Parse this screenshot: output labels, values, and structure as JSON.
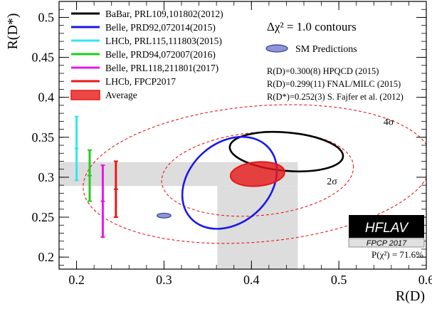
{
  "chart_data": {
    "type": "scatter",
    "xlabel": "R(D)",
    "ylabel": "R(D*)",
    "xlim": [
      0.18,
      0.6
    ],
    "ylim": [
      0.185,
      0.52
    ],
    "x_ticks": [
      "0.2",
      "0.3",
      "0.4",
      "0.5",
      "0.6"
    ],
    "y_ticks": [
      "0.2",
      "0.25",
      "0.3",
      "0.35",
      "0.4",
      "0.45",
      "0.5"
    ],
    "grid": false,
    "legend_position": "top-left",
    "colors": {
      "babar": "#000000",
      "belle_2015": "#1a1ae6",
      "lhcb_2015": "#33e6f2",
      "belle_2016": "#22cc22",
      "belle_2017": "#e619e6",
      "lhcb_2017": "#e61919",
      "average": "#e61919",
      "sm": "#8c96d2",
      "band": "#d9d9d9"
    },
    "legend": [
      {
        "key": "babar",
        "label": "BaBar, PRL109,101802(2012)",
        "style": "line"
      },
      {
        "key": "belle_2015",
        "label": "Belle, PRD92,072014(2015)",
        "style": "line"
      },
      {
        "key": "lhcb_2015",
        "label": "LHCb, PRL115,111803(2015)",
        "style": "line"
      },
      {
        "key": "belle_2016",
        "label": "Belle, PRD94,072007(2016)",
        "style": "line"
      },
      {
        "key": "belle_2017",
        "label": "Belle, PRL118,211801(2017)",
        "style": "line"
      },
      {
        "key": "lhcb_2017",
        "label": "LHCb, FPCP2017",
        "style": "line"
      },
      {
        "key": "average",
        "label": "Average",
        "style": "box"
      }
    ],
    "contours_title": "Δχ² = 1.0 contours",
    "sm_label": "SM Predictions",
    "sm_refs": [
      "R(D)=0.300(8) HPQCD (2015)",
      "R(D)=0.299(11) FNAL/MILC (2015)",
      "R(D*)=0.252(3) S. Fajfer et al. (2012)"
    ],
    "ellipses": [
      {
        "key": "babar",
        "cx": 0.44,
        "cy": 0.332,
        "rx": 0.065,
        "ry": 0.024,
        "angle": 5
      },
      {
        "key": "belle_2015",
        "cx": 0.375,
        "cy": 0.293,
        "rx": 0.06,
        "ry": 0.05,
        "angle": -42
      },
      {
        "key": "average",
        "cx": 0.407,
        "cy": 0.304,
        "rx": 0.031,
        "ry": 0.015,
        "angle": -5
      },
      {
        "key": "sm",
        "cx": 0.3,
        "cy": 0.252,
        "rx": 0.008,
        "ry": 0.003,
        "angle": 0
      }
    ],
    "sigma_contours": [
      {
        "label": "2σ",
        "cx": 0.407,
        "cy": 0.304,
        "rx": 0.11,
        "ry": 0.052,
        "angle": -5
      },
      {
        "label": "4σ",
        "cx": 0.407,
        "cy": 0.304,
        "rx": 0.2,
        "ry": 0.085,
        "angle": -5
      }
    ],
    "rdstar_only": [
      {
        "key": "lhcb_2015",
        "x": 0.2,
        "y": 0.336,
        "err": 0.04
      },
      {
        "key": "belle_2016",
        "x": 0.215,
        "y": 0.302,
        "err": 0.032
      },
      {
        "key": "belle_2017",
        "x": 0.23,
        "y": 0.27,
        "err": 0.045
      },
      {
        "key": "lhcb_2017",
        "x": 0.245,
        "y": 0.285,
        "err": 0.035
      }
    ],
    "bands": {
      "rdstar_avg": {
        "center": 0.304,
        "halfwidth": 0.015
      },
      "rd_avg": {
        "center": 0.407,
        "halfwidth": 0.046
      }
    },
    "hflav": {
      "logo": "HFLAV",
      "sub": "FPCP 2017"
    },
    "pvalue": "P(χ²) = 71.6%"
  }
}
